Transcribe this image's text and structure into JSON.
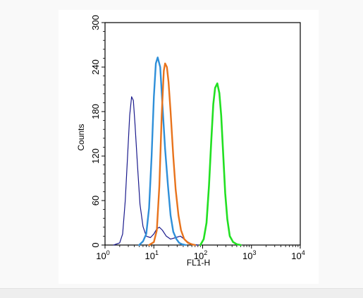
{
  "chart_data": {
    "type": "line",
    "title": "",
    "xlabel": "FL1-H",
    "ylabel": "Counts",
    "xscale": "log",
    "xlim": [
      1,
      10000
    ],
    "ylim": [
      0,
      300
    ],
    "grid": false,
    "legend": "none",
    "x_ticks": [
      {
        "base": "10",
        "exp": "0",
        "value": 1
      },
      {
        "base": "10",
        "exp": "1",
        "value": 10
      },
      {
        "base": "10",
        "exp": "2",
        "value": 100
      },
      {
        "base": "10",
        "exp": "3",
        "value": 1000
      },
      {
        "base": "10",
        "exp": "4",
        "value": 10000
      }
    ],
    "y_ticks": [
      "0",
      "60",
      "120",
      "180",
      "240",
      "300"
    ],
    "series": [
      {
        "color": "#1a1a8c",
        "peak_x": 3.5,
        "peak_y": 200,
        "points": [
          [
            1.5,
            0
          ],
          [
            2,
            3
          ],
          [
            2.3,
            15
          ],
          [
            2.6,
            60
          ],
          [
            2.9,
            120
          ],
          [
            3.2,
            175
          ],
          [
            3.5,
            200
          ],
          [
            3.8,
            195
          ],
          [
            4.1,
            165
          ],
          [
            4.6,
            110
          ],
          [
            5.2,
            55
          ],
          [
            6,
            25
          ],
          [
            7,
            12
          ],
          [
            8.5,
            10
          ],
          [
            10,
            15
          ],
          [
            11.5,
            22
          ],
          [
            13,
            24
          ],
          [
            15,
            20
          ],
          [
            18,
            12
          ],
          [
            22,
            8
          ],
          [
            28,
            10
          ],
          [
            35,
            12
          ],
          [
            42,
            8
          ],
          [
            50,
            4
          ],
          [
            60,
            1
          ],
          [
            80,
            0
          ]
        ]
      },
      {
        "color": "#2e8fd9",
        "peak_x": 12,
        "peak_y": 253,
        "points": [
          [
            5,
            0
          ],
          [
            6,
            5
          ],
          [
            7,
            15
          ],
          [
            8,
            50
          ],
          [
            9,
            120
          ],
          [
            10,
            200
          ],
          [
            11,
            245
          ],
          [
            12,
            253
          ],
          [
            13.5,
            240
          ],
          [
            15,
            190
          ],
          [
            17,
            130
          ],
          [
            19.5,
            80
          ],
          [
            22,
            40
          ],
          [
            25,
            18
          ],
          [
            29,
            8
          ],
          [
            33,
            3
          ],
          [
            38,
            1
          ],
          [
            45,
            0
          ]
        ]
      },
      {
        "color": "#e8731c",
        "peak_x": 17,
        "peak_y": 245,
        "points": [
          [
            8,
            0
          ],
          [
            10,
            4
          ],
          [
            11.5,
            20
          ],
          [
            13,
            80
          ],
          [
            14.5,
            175
          ],
          [
            16,
            235
          ],
          [
            17,
            245
          ],
          [
            18.5,
            240
          ],
          [
            20,
            220
          ],
          [
            22,
            180
          ],
          [
            25,
            120
          ],
          [
            28,
            75
          ],
          [
            32,
            40
          ],
          [
            36,
            20
          ],
          [
            42,
            8
          ],
          [
            50,
            3
          ],
          [
            60,
            1
          ],
          [
            70,
            0
          ]
        ]
      },
      {
        "color": "#22e022",
        "peak_x": 200,
        "peak_y": 218,
        "points": [
          [
            90,
            0
          ],
          [
            105,
            8
          ],
          [
            120,
            30
          ],
          [
            135,
            80
          ],
          [
            150,
            140
          ],
          [
            165,
            190
          ],
          [
            180,
            212
          ],
          [
            200,
            218
          ],
          [
            220,
            205
          ],
          [
            240,
            175
          ],
          [
            265,
            120
          ],
          [
            290,
            70
          ],
          [
            320,
            35
          ],
          [
            360,
            12
          ],
          [
            420,
            4
          ],
          [
            500,
            1
          ],
          [
            600,
            0
          ]
        ]
      }
    ]
  }
}
